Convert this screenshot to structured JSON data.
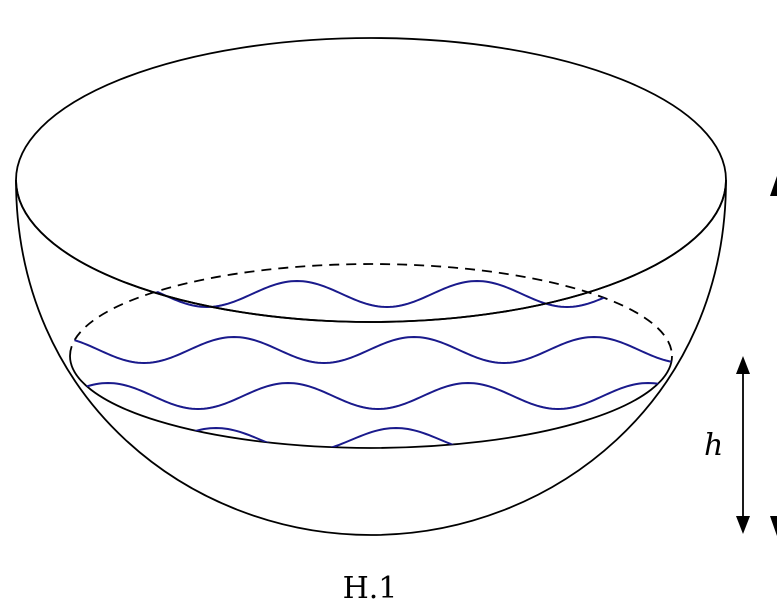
{
  "diagram": {
    "height_label": "h",
    "caption": "H.1",
    "colors": {
      "outline": "#000000",
      "water": "#1a1a8c"
    }
  }
}
